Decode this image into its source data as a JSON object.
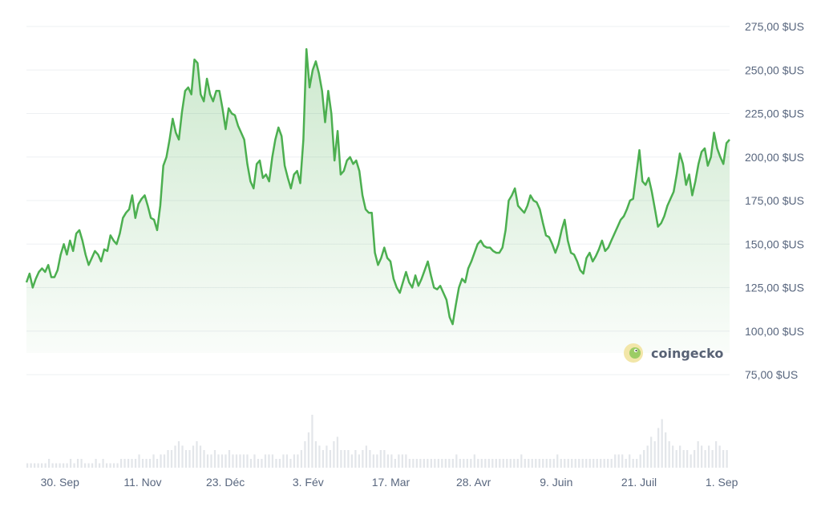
{
  "brand": {
    "name": "coingecko",
    "icon": "coingecko-gecko-icon"
  },
  "colors": {
    "line": "#4caf50",
    "area_top": "#4caf50",
    "grid": "#eef0f3",
    "volume": "#e3e6ea",
    "axis_text": "#58667e"
  },
  "chart_data": {
    "type": "area",
    "currency_format": "{v} $US",
    "y_ticks": [
      "275,00 $US",
      "250,00 $US",
      "225,00 $US",
      "200,00 $US",
      "175,00 $US",
      "150,00 $US",
      "125,00 $US",
      "100,00 $US",
      "75,00 $US"
    ],
    "y_tick_values": [
      275,
      250,
      225,
      200,
      175,
      150,
      125,
      100,
      75
    ],
    "ylim": [
      75,
      282
    ],
    "x_ticks": [
      {
        "label": "30. Sep",
        "day": 17
      },
      {
        "label": "11. Nov",
        "day": 59
      },
      {
        "label": "23. Déc",
        "day": 101
      },
      {
        "label": "3. Fév",
        "day": 143
      },
      {
        "label": "17. Mar",
        "day": 185
      },
      {
        "label": "28. Avr",
        "day": 227
      },
      {
        "label": "9. Juin",
        "day": 269
      },
      {
        "label": "21. Juil",
        "day": 311
      },
      {
        "label": "1. Sep",
        "day": 353
      }
    ],
    "x_range_days": [
      0,
      357
    ],
    "price": [
      [
        0,
        128
      ],
      [
        2,
        133
      ],
      [
        4,
        125
      ],
      [
        6,
        130
      ],
      [
        8,
        134
      ],
      [
        10,
        136
      ],
      [
        12,
        134
      ],
      [
        14,
        138
      ],
      [
        16,
        131
      ],
      [
        18,
        131
      ],
      [
        20,
        135
      ],
      [
        22,
        144
      ],
      [
        24,
        150
      ],
      [
        26,
        144
      ],
      [
        28,
        152
      ],
      [
        30,
        146
      ],
      [
        32,
        156
      ],
      [
        34,
        158
      ],
      [
        36,
        152
      ],
      [
        38,
        144
      ],
      [
        40,
        138
      ],
      [
        42,
        142
      ],
      [
        44,
        146
      ],
      [
        46,
        144
      ],
      [
        48,
        140
      ],
      [
        50,
        147
      ],
      [
        52,
        146
      ],
      [
        54,
        155
      ],
      [
        56,
        152
      ],
      [
        58,
        150
      ],
      [
        60,
        156
      ],
      [
        62,
        165
      ],
      [
        64,
        168
      ],
      [
        66,
        170
      ],
      [
        68,
        178
      ],
      [
        70,
        165
      ],
      [
        72,
        173
      ],
      [
        74,
        176
      ],
      [
        76,
        178
      ],
      [
        78,
        172
      ],
      [
        80,
        165
      ],
      [
        82,
        164
      ],
      [
        84,
        158
      ],
      [
        86,
        172
      ],
      [
        88,
        195
      ],
      [
        90,
        200
      ],
      [
        92,
        210
      ],
      [
        94,
        222
      ],
      [
        96,
        214
      ],
      [
        98,
        210
      ],
      [
        100,
        226
      ],
      [
        102,
        238
      ],
      [
        104,
        240
      ],
      [
        106,
        236
      ],
      [
        108,
        256
      ],
      [
        110,
        254
      ],
      [
        112,
        236
      ],
      [
        114,
        232
      ],
      [
        116,
        245
      ],
      [
        118,
        236
      ],
      [
        120,
        232
      ],
      [
        122,
        238
      ],
      [
        124,
        238
      ],
      [
        126,
        228
      ],
      [
        128,
        216
      ],
      [
        130,
        228
      ],
      [
        132,
        225
      ],
      [
        134,
        224
      ],
      [
        136,
        218
      ],
      [
        138,
        214
      ],
      [
        140,
        210
      ],
      [
        142,
        196
      ],
      [
        144,
        186
      ],
      [
        146,
        182
      ],
      [
        148,
        196
      ],
      [
        150,
        198
      ],
      [
        152,
        188
      ],
      [
        154,
        190
      ],
      [
        156,
        186
      ],
      [
        158,
        200
      ],
      [
        160,
        210
      ],
      [
        162,
        217
      ],
      [
        164,
        212
      ],
      [
        166,
        195
      ],
      [
        168,
        188
      ],
      [
        170,
        182
      ],
      [
        172,
        190
      ],
      [
        174,
        192
      ],
      [
        176,
        185
      ],
      [
        178,
        210
      ],
      [
        180,
        262
      ],
      [
        182,
        240
      ],
      [
        184,
        250
      ],
      [
        186,
        255
      ],
      [
        188,
        248
      ],
      [
        190,
        238
      ],
      [
        192,
        220
      ],
      [
        194,
        238
      ],
      [
        196,
        225
      ],
      [
        198,
        198
      ],
      [
        200,
        215
      ],
      [
        202,
        190
      ],
      [
        204,
        192
      ],
      [
        206,
        198
      ],
      [
        208,
        200
      ],
      [
        210,
        196
      ],
      [
        212,
        198
      ],
      [
        214,
        192
      ],
      [
        216,
        178
      ],
      [
        218,
        170
      ],
      [
        220,
        168
      ],
      [
        222,
        168
      ],
      [
        224,
        145
      ],
      [
        226,
        138
      ],
      [
        228,
        142
      ],
      [
        230,
        148
      ],
      [
        232,
        142
      ],
      [
        234,
        140
      ],
      [
        236,
        130
      ],
      [
        238,
        125
      ],
      [
        240,
        122
      ],
      [
        242,
        128
      ],
      [
        244,
        134
      ],
      [
        246,
        128
      ],
      [
        248,
        125
      ],
      [
        250,
        132
      ],
      [
        252,
        126
      ],
      [
        254,
        130
      ],
      [
        256,
        135
      ],
      [
        258,
        140
      ],
      [
        260,
        132
      ],
      [
        262,
        125
      ],
      [
        264,
        124
      ],
      [
        266,
        126
      ],
      [
        268,
        122
      ],
      [
        270,
        118
      ],
      [
        272,
        108
      ],
      [
        274,
        104
      ],
      [
        276,
        115
      ],
      [
        278,
        125
      ],
      [
        280,
        130
      ],
      [
        282,
        128
      ],
      [
        284,
        136
      ],
      [
        286,
        140
      ],
      [
        288,
        145
      ],
      [
        290,
        150
      ],
      [
        292,
        152
      ],
      [
        294,
        149
      ],
      [
        296,
        148
      ],
      [
        298,
        148
      ],
      [
        300,
        146
      ],
      [
        302,
        145
      ],
      [
        304,
        145
      ],
      [
        306,
        148
      ],
      [
        308,
        158
      ],
      [
        310,
        175
      ],
      [
        312,
        178
      ],
      [
        314,
        182
      ],
      [
        316,
        172
      ],
      [
        318,
        170
      ],
      [
        320,
        168
      ],
      [
        322,
        172
      ],
      [
        324,
        178
      ],
      [
        326,
        175
      ],
      [
        328,
        174
      ],
      [
        330,
        170
      ],
      [
        332,
        162
      ],
      [
        334,
        155
      ],
      [
        336,
        154
      ],
      [
        338,
        150
      ],
      [
        340,
        145
      ],
      [
        342,
        150
      ],
      [
        344,
        158
      ],
      [
        346,
        164
      ],
      [
        348,
        152
      ],
      [
        350,
        145
      ],
      [
        352,
        144
      ],
      [
        354,
        140
      ],
      [
        356,
        135
      ],
      [
        358,
        133
      ],
      [
        360,
        142
      ],
      [
        362,
        145
      ],
      [
        364,
        140
      ],
      [
        366,
        143
      ],
      [
        368,
        147
      ],
      [
        370,
        152
      ],
      [
        372,
        146
      ],
      [
        374,
        148
      ],
      [
        376,
        152
      ],
      [
        378,
        156
      ],
      [
        380,
        160
      ],
      [
        382,
        164
      ],
      [
        384,
        166
      ],
      [
        386,
        170
      ],
      [
        388,
        175
      ],
      [
        390,
        176
      ],
      [
        392,
        190
      ],
      [
        394,
        204
      ],
      [
        396,
        186
      ],
      [
        398,
        184
      ],
      [
        400,
        188
      ],
      [
        402,
        180
      ],
      [
        404,
        170
      ],
      [
        406,
        160
      ],
      [
        408,
        162
      ],
      [
        410,
        166
      ],
      [
        412,
        172
      ],
      [
        414,
        176
      ],
      [
        416,
        180
      ],
      [
        418,
        190
      ],
      [
        420,
        202
      ],
      [
        422,
        196
      ],
      [
        424,
        184
      ],
      [
        426,
        190
      ],
      [
        428,
        178
      ],
      [
        430,
        186
      ],
      [
        432,
        196
      ],
      [
        434,
        203
      ],
      [
        436,
        205
      ],
      [
        438,
        195
      ],
      [
        440,
        200
      ],
      [
        442,
        214
      ],
      [
        444,
        205
      ],
      [
        446,
        200
      ],
      [
        448,
        196
      ],
      [
        450,
        208
      ],
      [
        452,
        210
      ]
    ],
    "volume_note": "relative volume bars (no axis printed)",
    "volume": [
      1,
      1,
      1,
      1,
      1,
      1,
      2,
      1,
      1,
      1,
      1,
      1,
      2,
      1,
      2,
      2,
      1,
      1,
      1,
      2,
      1,
      2,
      1,
      1,
      1,
      1,
      2,
      2,
      2,
      2,
      2,
      3,
      2,
      2,
      2,
      3,
      2,
      3,
      3,
      4,
      4,
      5,
      6,
      5,
      4,
      4,
      5,
      6,
      5,
      4,
      3,
      3,
      4,
      3,
      3,
      3,
      4,
      3,
      3,
      3,
      3,
      3,
      2,
      3,
      2,
      2,
      3,
      3,
      3,
      2,
      2,
      3,
      3,
      2,
      3,
      3,
      4,
      6,
      8,
      12,
      6,
      5,
      4,
      5,
      4,
      6,
      7,
      4,
      4,
      4,
      3,
      4,
      3,
      4,
      5,
      4,
      3,
      3,
      4,
      4,
      3,
      3,
      2,
      3,
      3,
      3,
      2,
      2,
      2,
      2,
      2,
      2,
      2,
      2,
      2,
      2,
      2,
      2,
      2,
      3,
      2,
      2,
      2,
      2,
      3,
      2,
      2,
      2,
      2,
      2,
      2,
      2,
      2,
      2,
      2,
      2,
      2,
      3,
      2,
      2,
      2,
      2,
      2,
      2,
      2,
      2,
      2,
      3,
      2,
      2,
      2,
      2,
      2,
      2,
      2,
      2,
      2,
      2,
      2,
      2,
      2,
      2,
      2,
      3,
      3,
      3,
      2,
      3,
      2,
      2,
      3,
      4,
      5,
      7,
      6,
      9,
      11,
      8,
      6,
      5,
      4,
      5,
      4,
      4,
      3,
      4,
      6,
      5,
      4,
      5,
      4,
      6,
      5,
      4,
      4
    ]
  }
}
